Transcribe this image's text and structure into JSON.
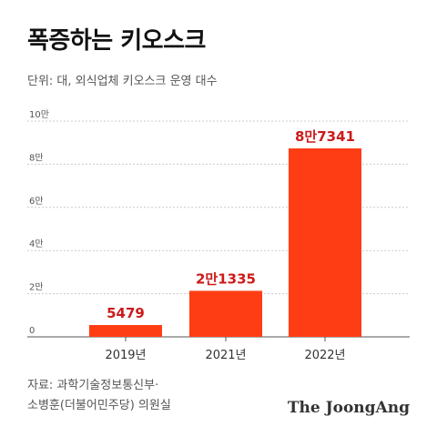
{
  "header": {
    "title": "폭증하는 키오스크",
    "subtitle": "단위: 대, 외식업체 키오스크 운영 대수"
  },
  "footer": {
    "source_line1": "자료: 과학기술정보통신부·",
    "source_line2": "소병훈(더불어민주당) 의원실",
    "brand": "The JoongAng"
  },
  "colors": {
    "bar": "#ff3d14",
    "value_label": "#cc1a1a",
    "grid": "#cccccc",
    "axis": "#555555"
  },
  "chart_data": {
    "type": "bar",
    "title": "폭증하는 키오스크",
    "subtitle": "단위: 대, 외식업체 키오스크 운영 대수",
    "categories": [
      "2019년",
      "2021년",
      "2022년"
    ],
    "values": [
      5479,
      21335,
      87341
    ],
    "value_labels": [
      "5479",
      "2만1335",
      "8만7341"
    ],
    "ylim": [
      0,
      100000
    ],
    "yticks": [
      0,
      20000,
      40000,
      60000,
      80000,
      100000
    ],
    "ytick_labels": [
      "0",
      "2만",
      "4만",
      "6만",
      "8만",
      "10만"
    ],
    "grid": true,
    "legend": "none"
  }
}
